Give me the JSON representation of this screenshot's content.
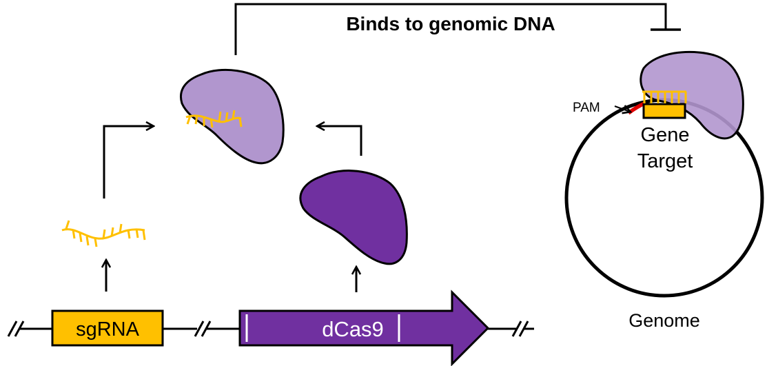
{
  "title": "Binds to genomic DNA",
  "labels": {
    "sgrna": "sgRNA",
    "dcas9": "dCas9",
    "pam": "PAM",
    "gene_target_line1": "Gene",
    "gene_target_line2": "Target",
    "genome": "Genome"
  },
  "colors": {
    "sgrna_box": "#FFC000",
    "rna_strand": "#FFC000",
    "dcas9_protein": "#7030A0",
    "complex_protein": "#B196CE",
    "pam_site": "#E00000",
    "outline": "#000000",
    "background": "#FFFFFF"
  },
  "icons": {
    "inhibition": "inhibition-bar-icon",
    "arrow": "arrow-icon",
    "dna_break": "double-slash-break-icon"
  }
}
